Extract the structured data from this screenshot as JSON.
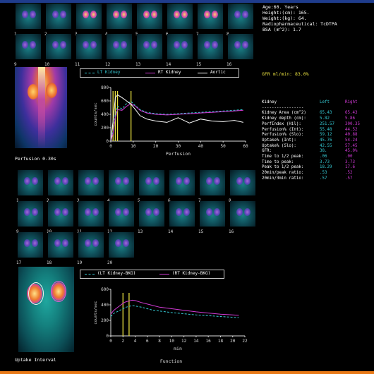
{
  "patient_info": {
    "age": "Age:60. Years",
    "height": "Height:(cm): 165.",
    "weight": "Weight:(kg): 64.",
    "radiopharm": "Radiopharmaceutical:  TcDTPA",
    "bsa": "BSA (m^2): 1.7"
  },
  "gfr": "GFR ml/min: 83.0%",
  "perfusion_panel": {
    "label": "Perfusion 0-30s",
    "frame_numbers": [
      "1",
      "2",
      "3",
      "4",
      "5",
      "6",
      "7",
      "8",
      "9",
      "10",
      "11",
      "12",
      "13",
      "14",
      "15",
      "16"
    ]
  },
  "function_panel": {
    "label": "Uptake Interval",
    "frame_numbers": [
      "1",
      "2",
      "3",
      "4",
      "5",
      "6",
      "7",
      "8",
      "9",
      "10",
      "11",
      "12",
      "13",
      "14",
      "15",
      "16",
      "17",
      "18",
      "19",
      "20"
    ]
  },
  "perfusion_legend": [
    "LT Kidney",
    "RT Kidney",
    "Aortic"
  ],
  "function_legend": [
    "(LT Kidney-BKG)",
    "(RT Kidney-BKG)"
  ],
  "colors": {
    "lt": "#35c9d3",
    "rt": "#d03ad4",
    "aortic": "#ffffff",
    "marker": "#e8e040",
    "accent_top": "#1f3c8c",
    "accent_bottom": "#e87a18"
  },
  "table": {
    "header": [
      "Kidney",
      "Left",
      "Right"
    ],
    "separator": "-----------------",
    "rows": [
      [
        "Kidney Area (cm^2)",
        "65.43",
        "65.43"
      ],
      [
        "Kidney depth (cm):",
        "5.82",
        "5.86"
      ],
      [
        "PerfIndex (Hil):",
        "251.57",
        "300.35"
      ],
      [
        "Perfusion% (Int):",
        "55.48",
        "44.52"
      ],
      [
        "Perfusion% (Slo):",
        "59.12",
        "40.88"
      ],
      [
        "Uptake% (Int):",
        "45.76",
        "54.24"
      ],
      [
        "Uptake% (Slo):",
        "42.55",
        "57.45"
      ],
      [
        "GFR:",
        "38.",
        "45.0%"
      ],
      [
        "Time to 1/2 peak:",
        ".06",
        ".00"
      ],
      [
        "Time to peak:",
        "3.73",
        "3.73"
      ],
      [
        "Peak to 1/2 peak:",
        "18.29",
        "17.6"
      ],
      [
        "20min/peak ratio:",
        ".53",
        ".52"
      ],
      [
        "20min/3min ratio:",
        ".57",
        ".57"
      ]
    ]
  },
  "chart_data": [
    {
      "type": "line",
      "xlabel": "Perfusion",
      "ylabel": "counts/sec",
      "xlim": [
        0,
        60
      ],
      "ylim": [
        0,
        800
      ],
      "xticks": [
        0,
        10,
        20,
        30,
        40,
        50,
        60
      ],
      "yticks": [
        0,
        200,
        400,
        600,
        800
      ],
      "markers_x": [
        1,
        2,
        3,
        9
      ],
      "x": [
        0,
        1,
        2,
        3,
        5,
        7,
        9,
        11,
        13,
        16,
        20,
        25,
        30,
        35,
        40,
        45,
        50,
        55,
        59
      ],
      "series": [
        {
          "name": "LT Kidney",
          "values": [
            0,
            150,
            400,
            520,
            480,
            560,
            590,
            530,
            470,
            430,
            410,
            400,
            410,
            420,
            430,
            440,
            450,
            460,
            470
          ]
        },
        {
          "name": "RT Kidney",
          "values": [
            0,
            120,
            350,
            470,
            460,
            520,
            560,
            520,
            460,
            420,
            400,
            390,
            400,
            410,
            420,
            430,
            440,
            450,
            460
          ]
        },
        {
          "name": "Aortic",
          "values": [
            0,
            300,
            650,
            690,
            650,
            600,
            550,
            470,
            380,
            330,
            300,
            280,
            350,
            270,
            330,
            300,
            290,
            310,
            280
          ]
        }
      ]
    },
    {
      "type": "line",
      "xlabel": "min",
      "ylabel": "counts/sec",
      "title": "Function",
      "xlim": [
        0,
        22
      ],
      "ylim": [
        0,
        600
      ],
      "xticks": [
        0,
        2,
        4,
        6,
        8,
        10,
        12,
        14,
        16,
        18,
        20,
        22
      ],
      "yticks": [
        0,
        200,
        400,
        600
      ],
      "markers_x": [
        2,
        3
      ],
      "x": [
        0,
        0.5,
        1,
        1.5,
        2,
        2.5,
        3,
        3.5,
        4,
        5,
        6,
        7,
        8,
        10,
        12,
        14,
        16,
        18,
        20,
        21
      ],
      "series": [
        {
          "name": "(LT Kidney-BKG)",
          "values": [
            250,
            290,
            310,
            330,
            350,
            370,
            380,
            390,
            385,
            370,
            350,
            330,
            320,
            300,
            285,
            270,
            260,
            250,
            240,
            235
          ]
        },
        {
          "name": "(RT Kidney-BKG)",
          "values": [
            280,
            330,
            360,
            390,
            420,
            440,
            450,
            460,
            455,
            430,
            410,
            390,
            370,
            350,
            330,
            310,
            295,
            280,
            270,
            265
          ]
        }
      ]
    }
  ]
}
